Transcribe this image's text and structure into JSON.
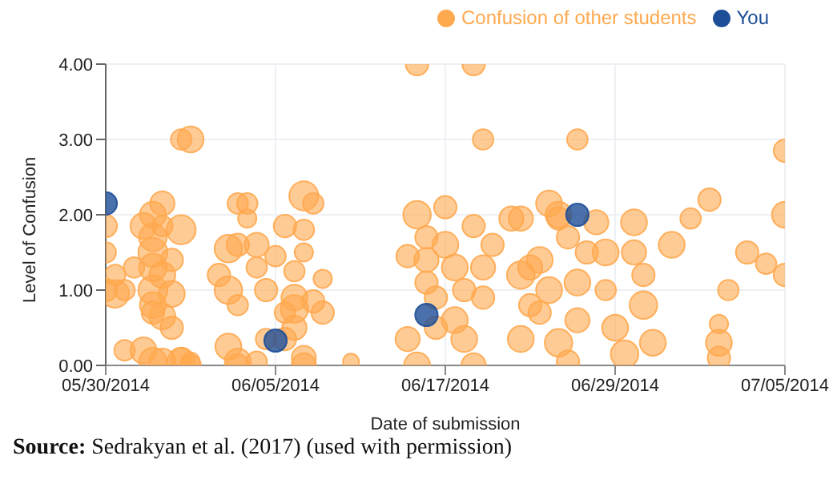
{
  "chart_data": {
    "type": "bubble",
    "xlabel": "Date of submission",
    "ylabel": "Level of Confusion",
    "annotations": [
      "Source: Sedrakyan et al. (2017) (used with permission)"
    ],
    "xlim": [
      "2014-05-30",
      "2014-07-05"
    ],
    "xticks": [
      {
        "value": "2014-05-30",
        "label": "05/30/2014"
      },
      {
        "value": "2014-06-08",
        "label": "06/05/2014"
      },
      {
        "value": "2014-06-17",
        "label": "06/17/2014"
      },
      {
        "value": "2014-06-26",
        "label": "06/29/2014"
      },
      {
        "value": "2014-07-05",
        "label": "07/05/2014"
      }
    ],
    "ylim": [
      0,
      4
    ],
    "yticks": [
      {
        "value": 0,
        "label": "0.00"
      },
      {
        "value": 1,
        "label": "1.00"
      },
      {
        "value": 2,
        "label": "2.00"
      },
      {
        "value": 3,
        "label": "3.00"
      },
      {
        "value": 4,
        "label": "4.00"
      }
    ],
    "grid": true,
    "legend": "top right",
    "marker": "circle",
    "series": [
      {
        "name": "Confusion of other students",
        "color": "#ffa94f",
        "x": [
          "2014-05-30",
          "2014-05-30",
          "2014-05-30",
          "2014-05-30T12:00",
          "2014-05-30T12:00",
          "2014-05-31",
          "2014-05-31T12:00",
          "2014-05-31",
          "2014-06-01",
          "2014-06-01T12:00",
          "2014-06-02",
          "2014-06-02",
          "2014-06-01T12:00",
          "2014-06-01T12:00",
          "2014-06-01T12:00",
          "2014-06-02",
          "2014-06-01T12:00",
          "2014-06-02T12:00",
          "2014-06-01T12:00",
          "2014-06-02",
          "2014-06-02T12:00",
          "2014-06-01T12:00",
          "2014-06-01",
          "2014-06-01T12:00",
          "2014-06-02",
          "2014-06-03",
          "2014-06-03",
          "2014-06-03T12:00",
          "2014-06-02T12:00",
          "2014-06-03",
          "2014-06-03T12:00",
          "2014-06-03",
          "2014-06-03T12:00",
          "2014-06-05T12:00",
          "2014-06-06",
          "2014-06-07",
          "2014-06-06",
          "2014-06-06T12:00",
          "2014-06-06T12:00",
          "2014-06-05T12:00",
          "2014-06-06",
          "2014-06-05",
          "2014-06-05T12:00",
          "2014-06-06",
          "2014-06-06",
          "2014-06-07",
          "2014-06-07",
          "2014-06-07T12:00",
          "2014-06-07T12:00",
          "2014-06-08T12:00",
          "2014-06-09T12:00",
          "2014-06-10",
          "2014-06-09T12:00",
          "2014-06-09T12:00",
          "2014-06-09",
          "2014-06-08T12:00",
          "2014-06-09",
          "2014-06-09",
          "2014-06-09",
          "2014-06-09T12:00",
          "2014-06-09T12:00",
          "2014-06-10",
          "2014-06-10T12:00",
          "2014-06-10T12:00",
          "2014-06-12",
          "2014-06-08",
          "2014-06-08T12:00",
          "2014-06-15",
          "2014-06-15T12:00",
          "2014-06-15T12:00",
          "2014-06-16",
          "2014-06-16",
          "2014-06-15",
          "2014-06-15T12:00",
          "2014-06-16",
          "2014-06-16T12:00",
          "2014-06-16T12:00",
          "2014-06-17",
          "2014-06-17",
          "2014-06-17T12:00",
          "2014-06-17T12:00",
          "2014-06-18",
          "2014-06-18",
          "2014-06-18T12:00",
          "2014-06-18T12:00",
          "2014-06-18T12:00",
          "2014-06-19",
          "2014-06-19",
          "2014-06-19",
          "2014-06-19T12:00",
          "2014-06-20T12:00",
          "2014-06-21",
          "2014-06-21",
          "2014-06-21T12:00",
          "2014-06-21T12:00",
          "2014-06-21",
          "2014-06-22",
          "2014-06-22",
          "2014-06-22T12:00",
          "2014-06-22T12:00",
          "2014-06-23",
          "2014-06-23T12:00",
          "2014-06-23",
          "2014-06-23T12:00",
          "2014-06-24",
          "2014-06-24",
          "2014-06-23",
          "2014-06-24T12:00",
          "2014-06-24",
          "2014-06-25",
          "2014-06-25T12:00",
          "2014-06-25T12:00",
          "2014-06-26",
          "2014-06-26T12:00",
          "2014-06-27",
          "2014-06-27",
          "2014-06-27T12:00",
          "2014-06-28",
          "2014-06-27T12:00",
          "2014-06-29",
          "2014-06-30",
          "2014-07-01T12:00",
          "2014-07-01T12:00",
          "2014-07-01T12:00",
          "2014-07-03",
          "2014-07-04",
          "2014-07-05",
          "2014-07-05",
          "2014-07-05",
          "2014-07-01",
          "2014-07-02"
        ],
        "values": [
          1.85,
          1.5,
          1.0,
          1.2,
          0.95,
          1.0,
          1.3,
          0.2,
          1.85,
          2.0,
          2.15,
          1.85,
          1.7,
          1.5,
          1.3,
          1.2,
          1.0,
          0.95,
          0.8,
          0.65,
          0.5,
          0.7,
          0.2,
          0.05,
          0.05,
          0.05,
          0.1,
          0.0,
          1.4,
          1.8,
          0.05,
          3.0,
          3.0,
          1.55,
          1.6,
          1.6,
          2.15,
          2.15,
          1.95,
          1.0,
          0.8,
          1.2,
          0.25,
          0.05,
          0.0,
          0.05,
          1.3,
          1.0,
          0.35,
          1.85,
          2.25,
          2.15,
          1.8,
          1.5,
          1.25,
          0.7,
          0.9,
          0.75,
          0.5,
          0.1,
          0.0,
          0.85,
          0.7,
          1.15,
          0.05,
          1.45,
          0.35,
          1.45,
          2.0,
          4.0,
          1.7,
          1.4,
          0.35,
          0.0,
          1.1,
          0.9,
          0.5,
          2.1,
          1.6,
          1.3,
          0.6,
          1.0,
          0.35,
          0.0,
          4.0,
          1.85,
          1.3,
          0.9,
          3.0,
          1.6,
          1.95,
          1.95,
          1.2,
          1.3,
          0.8,
          0.35,
          0.7,
          1.4,
          1.0,
          2.15,
          1.95,
          1.7,
          0.3,
          0.05,
          0.6,
          3.0,
          2.0,
          1.5,
          1.1,
          1.9,
          1.5,
          1.0,
          0.5,
          0.15,
          1.5,
          1.9,
          0.8,
          0.3,
          1.2,
          1.6,
          1.95,
          0.3,
          0.1,
          0.55,
          1.5,
          1.35,
          1.2,
          2.0,
          2.85,
          2.2,
          1.0
        ],
        "sizes": [
          0.6,
          0.5,
          0.6,
          0.5,
          0.9,
          0.5,
          0.5,
          0.5,
          0.8,
          0.8,
          0.7,
          0.5,
          0.9,
          1.0,
          0.9,
          0.8,
          1.0,
          0.8,
          0.8,
          0.8,
          0.6,
          0.6,
          0.8,
          0.9,
          0.8,
          0.9,
          0.5,
          0.5,
          0.6,
          1.0,
          0.4,
          0.5,
          0.8,
          0.9,
          0.6,
          0.7,
          0.5,
          0.5,
          0.4,
          0.9,
          0.5,
          0.6,
          0.8,
          0.8,
          0.6,
          0.5,
          0.5,
          0.6,
          0.5,
          0.6,
          1.0,
          0.5,
          0.5,
          0.4,
          0.5,
          0.5,
          0.8,
          0.9,
          0.7,
          0.7,
          0.7,
          0.6,
          0.6,
          0.4,
          0.3,
          0.5,
          0.6,
          0.6,
          0.9,
          0.6,
          0.6,
          0.7,
          0.7,
          0.8,
          0.6,
          0.6,
          0.6,
          0.6,
          0.8,
          0.8,
          0.8,
          0.6,
          0.8,
          0.7,
          0.6,
          0.6,
          0.7,
          0.6,
          0.5,
          0.6,
          0.7,
          0.7,
          0.9,
          0.7,
          0.6,
          0.8,
          0.6,
          0.8,
          0.8,
          0.8,
          0.6,
          0.6,
          0.9,
          0.6,
          0.7,
          0.5,
          0.8,
          0.6,
          0.8,
          0.7,
          0.8,
          0.5,
          0.8,
          0.9,
          0.7,
          0.8,
          0.9,
          0.8,
          0.6,
          0.8,
          0.5,
          0.8,
          0.6,
          0.4,
          0.6,
          0.5,
          0.6,
          0.8,
          0.6,
          0.6,
          0.5
        ]
      },
      {
        "name": "You",
        "color": "#1d4e97",
        "x": [
          "2014-05-30",
          "2014-06-08",
          "2014-06-16",
          "2014-06-24"
        ],
        "values": [
          2.15,
          0.33,
          0.67,
          2.0
        ],
        "sizes": [
          0.6,
          0.6,
          0.6,
          0.6
        ]
      }
    ]
  }
}
